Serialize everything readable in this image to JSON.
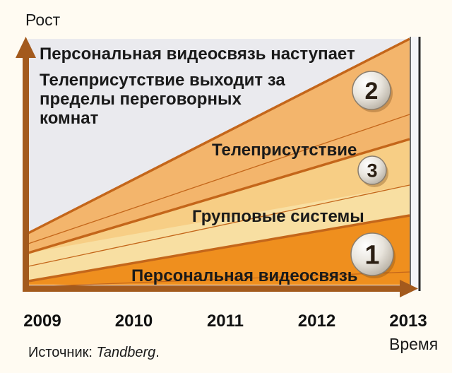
{
  "chart_data": {
    "type": "area",
    "ylabel": "Рост",
    "xlabel": "Время",
    "x": [
      2009,
      2010,
      2011,
      2012,
      2013
    ],
    "tick_labels": [
      "2009",
      "2010",
      "2011",
      "2012",
      "2013"
    ],
    "bands": [
      {
        "name": "Персональная видеосвязь",
        "number": "1",
        "color": "#ef8f1e"
      },
      {
        "name": "Групповые системы",
        "number": "",
        "color": "#f8dfa2"
      },
      {
        "name": "Телеприсутствие",
        "number": "3",
        "color": "#f6c06e"
      },
      {
        "name": "Телеприсутствие выходит за пределы переговорных комнат",
        "number": "2",
        "color": "#f3b56c"
      },
      {
        "name": "Персональная видеосвязь наступает",
        "number": "",
        "color": "#eaeaee"
      }
    ],
    "title_lines": [
      "Персональная видеосвязь наступает"
    ],
    "annotation_lines": [
      "Телеприсутствие выходит за",
      "пределы переговорных",
      "комнат"
    ],
    "band_labels": {
      "telepresence": "Телеприсутствие",
      "group": "Групповые системы",
      "personal": "Персональная видеосвязь"
    },
    "circle_numbers": [
      "2",
      "3",
      "1"
    ],
    "source_prefix": "Источник:",
    "source_name": "Tandberg",
    "source_suffix": ".",
    "colors": {
      "axis": "#a35a1d",
      "top_area": "#eaeaee",
      "band_orange": "#ef8f1e",
      "band_light": "#f8dfa2",
      "band_mid": "#f6c06e",
      "band_upper": "#f3b56c",
      "line": "#c4661a"
    }
  }
}
